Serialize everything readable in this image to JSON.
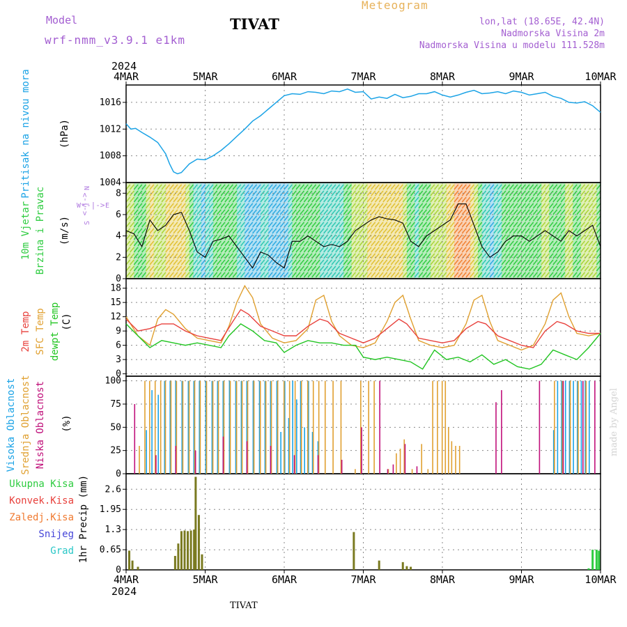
{
  "header": {
    "title": "TIVAT",
    "model_label": "Model",
    "model_name": "wrf-nmm_v3.9.1 e1km",
    "meteogram": "Meteogram",
    "lonlat": "lon,lat (18.65E, 42.4N)",
    "altitude": "Nadmorska Visina 2m",
    "model_altitude": "Nadmorska Visina u modelu 111.528m"
  },
  "footer": {
    "station": "TIVAT",
    "made_by": "made by Angel"
  },
  "time_axis": {
    "year": "2024",
    "ticks": [
      "4MAR",
      "5MAR",
      "6MAR",
      "7MAR",
      "8MAR",
      "9MAR",
      "10MAR"
    ]
  },
  "colors": {
    "pressure": "#1ba3e6",
    "wind_green": "#2ecc40",
    "temp2m": "#e8413c",
    "sfc": "#e0a030",
    "dewpt": "#22c522",
    "high_cloud": "#1ba3e6",
    "mid_cloud": "#e0a030",
    "low_cloud": "#c0107a",
    "total_precip": "#2ecc40",
    "conv_precip": "#e8413c",
    "frozen_precip": "#f07a30",
    "snow": "#4545d8",
    "hail": "#29c7c7",
    "precip_bar": "#7a7a20",
    "compass": "#b07be0"
  },
  "chart_data": [
    {
      "type": "line",
      "panel": "pressure",
      "ylabel": "Pritisak na nivou mora",
      "unit": "(hPa)",
      "yticks": [
        1004,
        1008,
        1012,
        1016
      ],
      "ylim": [
        1004,
        1018.6
      ],
      "grid": true,
      "series": [
        {
          "name": "Pritisak na nivou mora",
          "x": [
            0,
            0.06,
            0.12,
            0.2,
            0.3,
            0.4,
            0.5,
            0.55,
            0.6,
            0.65,
            0.7,
            0.8,
            0.9,
            1.0,
            1.1,
            1.2,
            1.3,
            1.4,
            1.5,
            1.6,
            1.7,
            1.8,
            1.9,
            2.0,
            2.1,
            2.2,
            2.3,
            2.4,
            2.5,
            2.6,
            2.7,
            2.8,
            2.9,
            3.0,
            3.1,
            3.2,
            3.3,
            3.4,
            3.5,
            3.6,
            3.7,
            3.8,
            3.9,
            4.0,
            4.1,
            4.2,
            4.3,
            4.4,
            4.5,
            4.6,
            4.7,
            4.8,
            4.9,
            5.0,
            5.1,
            5.2,
            5.3,
            5.4,
            5.5,
            5.6,
            5.7,
            5.8,
            5.9,
            6.0
          ],
          "values": [
            1012.8,
            1012.0,
            1012.1,
            1011.5,
            1010.8,
            1010.0,
            1008.3,
            1006.8,
            1005.6,
            1005.3,
            1005.5,
            1006.8,
            1007.5,
            1007.4,
            1008.0,
            1008.8,
            1009.8,
            1010.9,
            1012.0,
            1013.2,
            1014.0,
            1015.0,
            1016.0,
            1017.0,
            1017.3,
            1017.2,
            1017.6,
            1017.5,
            1017.3,
            1017.7,
            1017.6,
            1018.0,
            1017.5,
            1017.6,
            1016.5,
            1016.8,
            1016.6,
            1017.2,
            1016.7,
            1016.9,
            1017.3,
            1017.3,
            1017.6,
            1017.1,
            1016.8,
            1017.1,
            1017.5,
            1017.8,
            1017.3,
            1017.4,
            1017.6,
            1017.3,
            1017.7,
            1017.5,
            1017.1,
            1017.3,
            1017.5,
            1016.9,
            1016.6,
            1016.0,
            1015.9,
            1016.1,
            1015.5,
            1014.5
          ]
        }
      ]
    },
    {
      "type": "line",
      "panel": "wind",
      "ylabel": [
        "10m Vjetar",
        "Brzina i Pravac"
      ],
      "unit": "(m/s)",
      "compass": {
        "north": "N",
        "south": "S",
        "east": "E",
        "west": "W",
        "arrow": "<-|->"
      },
      "yticks": [
        0,
        2,
        4,
        6,
        8
      ],
      "ylim": [
        0,
        9
      ],
      "grid": true,
      "series": [
        {
          "name": "Brzina",
          "x": [
            0,
            0.1,
            0.2,
            0.3,
            0.4,
            0.5,
            0.6,
            0.7,
            0.8,
            0.9,
            1.0,
            1.1,
            1.2,
            1.3,
            1.4,
            1.5,
            1.6,
            1.7,
            1.8,
            1.9,
            2.0,
            2.1,
            2.2,
            2.3,
            2.4,
            2.5,
            2.6,
            2.7,
            2.8,
            2.9,
            3.0,
            3.1,
            3.2,
            3.3,
            3.4,
            3.5,
            3.6,
            3.7,
            3.8,
            3.9,
            4.0,
            4.1,
            4.2,
            4.3,
            4.4,
            4.5,
            4.6,
            4.7,
            4.8,
            4.9,
            5.0,
            5.1,
            5.2,
            5.3,
            5.4,
            5.5,
            5.6,
            5.7,
            5.8,
            5.9,
            6.0
          ],
          "values": [
            4.5,
            4.2,
            3.0,
            5.5,
            4.5,
            5.0,
            6.0,
            6.2,
            4.5,
            2.5,
            2.0,
            3.5,
            3.7,
            4.0,
            3.0,
            2.0,
            1.0,
            2.5,
            2.2,
            1.5,
            1.0,
            3.5,
            3.5,
            4.0,
            3.5,
            3.0,
            3.2,
            3.0,
            3.5,
            4.5,
            5.0,
            5.5,
            5.8,
            5.6,
            5.5,
            5.2,
            3.5,
            3.0,
            4.0,
            4.5,
            5.0,
            5.5,
            7.0,
            7.0,
            5.0,
            3.0,
            2.0,
            2.5,
            3.5,
            4.0,
            4.0,
            3.5,
            4.0,
            4.5,
            4.0,
            3.5,
            4.5,
            4.0,
            4.5,
            5.0,
            3.0
          ]
        }
      ]
    },
    {
      "type": "line",
      "panel": "temperature",
      "ylabel": [
        "2m Temp",
        "SFC Temp",
        "dewpt Temp"
      ],
      "unit": "(C)",
      "yticks": [
        0,
        3,
        6,
        9,
        12,
        15,
        18
      ],
      "ylim": [
        -0.5,
        20
      ],
      "grid": true,
      "series": [
        {
          "name": "2m Temp",
          "x": [
            0,
            0.15,
            0.3,
            0.45,
            0.6,
            0.75,
            0.9,
            1.05,
            1.2,
            1.35,
            1.45,
            1.55,
            1.7,
            1.85,
            2.0,
            2.15,
            2.3,
            2.45,
            2.55,
            2.7,
            2.85,
            3.0,
            3.15,
            3.3,
            3.45,
            3.55,
            3.7,
            3.85,
            4.0,
            4.15,
            4.3,
            4.45,
            4.55,
            4.7,
            4.85,
            5.0,
            5.15,
            5.3,
            5.45,
            5.55,
            5.7,
            5.85,
            6.0
          ],
          "values": [
            11.5,
            9.0,
            9.5,
            10.5,
            10.5,
            9.0,
            8.0,
            7.5,
            7.0,
            11.0,
            13.5,
            12.5,
            10.0,
            9.0,
            8.0,
            8.0,
            10.0,
            11.5,
            11.0,
            8.5,
            7.5,
            6.5,
            7.5,
            9.5,
            11.5,
            10.5,
            7.5,
            7.0,
            6.5,
            7.0,
            9.5,
            11.0,
            10.5,
            8.0,
            7.0,
            6.0,
            5.5,
            9.0,
            11.0,
            10.5,
            9.0,
            8.5,
            8.5
          ]
        },
        {
          "name": "SFC Temp",
          "x": [
            0,
            0.15,
            0.3,
            0.4,
            0.5,
            0.6,
            0.75,
            0.9,
            1.05,
            1.2,
            1.3,
            1.4,
            1.5,
            1.6,
            1.7,
            1.85,
            2.0,
            2.15,
            2.3,
            2.4,
            2.5,
            2.6,
            2.7,
            2.85,
            3.0,
            3.15,
            3.3,
            3.4,
            3.5,
            3.6,
            3.7,
            3.85,
            4.0,
            4.15,
            4.3,
            4.4,
            4.5,
            4.6,
            4.7,
            4.85,
            5.0,
            5.15,
            5.3,
            5.4,
            5.5,
            5.6,
            5.7,
            5.85,
            6.0
          ],
          "values": [
            12.0,
            8.0,
            6.0,
            11.5,
            13.5,
            12.5,
            9.5,
            7.5,
            7.0,
            6.5,
            10.0,
            15.0,
            18.5,
            16.0,
            10.5,
            7.5,
            6.5,
            7.0,
            9.5,
            15.5,
            16.5,
            11.0,
            8.0,
            6.0,
            5.5,
            6.5,
            11.0,
            15.0,
            16.5,
            11.5,
            7.0,
            6.0,
            5.5,
            6.0,
            10.5,
            15.5,
            16.5,
            11.0,
            7.0,
            6.0,
            5.0,
            6.0,
            10.5,
            15.5,
            17.0,
            12.0,
            8.5,
            8.0,
            8.5
          ]
        },
        {
          "name": "dewpt Temp",
          "x": [
            0,
            0.15,
            0.3,
            0.45,
            0.6,
            0.75,
            0.9,
            1.05,
            1.2,
            1.3,
            1.45,
            1.6,
            1.75,
            1.9,
            2.0,
            2.15,
            2.3,
            2.45,
            2.6,
            2.75,
            2.9,
            3.0,
            3.15,
            3.3,
            3.45,
            3.6,
            3.75,
            3.9,
            4.05,
            4.2,
            4.35,
            4.5,
            4.65,
            4.8,
            4.95,
            5.1,
            5.25,
            5.4,
            5.55,
            5.7,
            5.85,
            6.0
          ],
          "values": [
            10.5,
            8.0,
            5.5,
            7.0,
            6.5,
            6.0,
            6.5,
            6.0,
            5.5,
            8.0,
            10.5,
            9.0,
            7.0,
            6.5,
            4.5,
            6.0,
            7.0,
            6.5,
            6.5,
            6.0,
            6.0,
            3.5,
            3.0,
            3.5,
            3.0,
            2.5,
            1.0,
            5.0,
            3.0,
            3.5,
            2.5,
            4.0,
            2.0,
            3.0,
            1.5,
            1.0,
            2.0,
            5.0,
            4.0,
            3.0,
            5.5,
            8.5
          ]
        }
      ]
    },
    {
      "type": "bar",
      "panel": "clouds",
      "ylabel": [
        "Visoka Oblacnost",
        "Srednja Oblacnost",
        "Niska Oblacnost"
      ],
      "unit": "(%)",
      "yticks": [
        0,
        25,
        50,
        75,
        100
      ],
      "ylim": [
        0,
        105
      ],
      "grid": true,
      "series": [
        {
          "name": "Visoka Oblacnost",
          "x": [
            0.18,
            0.25,
            0.32,
            0.4,
            0.48,
            0.55,
            0.62,
            0.7,
            0.78,
            0.85,
            0.92,
            1.0,
            1.08,
            1.15,
            1.22,
            1.3,
            1.38,
            1.45,
            1.52,
            1.6,
            1.68,
            1.75,
            1.82,
            1.9,
            1.95,
            2.0,
            2.05,
            2.1,
            2.15,
            2.2,
            2.25,
            2.3,
            2.35,
            2.42,
            2.5,
            5.4,
            5.45,
            5.5,
            5.55,
            5.6,
            5.65,
            5.7,
            5.75,
            5.8,
            5.85
          ],
          "values": [
            0,
            47,
            90,
            85,
            100,
            100,
            100,
            100,
            100,
            100,
            100,
            100,
            100,
            100,
            100,
            100,
            100,
            100,
            100,
            100,
            100,
            100,
            100,
            100,
            45,
            100,
            60,
            100,
            80,
            100,
            50,
            100,
            45,
            35,
            0,
            47,
            100,
            100,
            100,
            100,
            100,
            100,
            100,
            100,
            100
          ]
        },
        {
          "name": "Srednja Oblacnost",
          "x": [
            0.15,
            0.22,
            0.28,
            0.35,
            0.42,
            0.48,
            0.55,
            0.62,
            0.7,
            0.78,
            0.85,
            0.92,
            1.0,
            1.08,
            1.15,
            1.22,
            1.3,
            1.38,
            1.45,
            1.52,
            1.6,
            1.68,
            1.75,
            1.82,
            1.9,
            1.98,
            2.05,
            2.12,
            2.2,
            2.28,
            2.35,
            2.42,
            2.5,
            2.6,
            2.7,
            2.88,
            2.95,
            3.05,
            3.12,
            3.3,
            3.4,
            3.45,
            3.5,
            3.6,
            3.72,
            3.8,
            3.86,
            3.92,
            3.98,
            4.02,
            4.06,
            4.1,
            4.15,
            4.2,
            5.4,
            5.5,
            5.6,
            5.7,
            5.8
          ],
          "values": [
            30,
            100,
            100,
            100,
            100,
            100,
            100,
            100,
            100,
            100,
            100,
            100,
            100,
            100,
            100,
            100,
            100,
            100,
            100,
            100,
            100,
            100,
            100,
            100,
            100,
            100,
            100,
            100,
            100,
            100,
            100,
            100,
            100,
            100,
            100,
            5,
            100,
            100,
            100,
            5,
            22,
            27,
            37,
            5,
            32,
            5,
            100,
            100,
            100,
            100,
            50,
            35,
            30,
            30,
            100,
            100,
            100,
            100,
            100
          ]
        },
        {
          "name": "Niska Oblacnost",
          "x": [
            0.08,
            0.35,
            0.6,
            0.85,
            1.2,
            1.5,
            1.8,
            2.1,
            2.4,
            2.7,
            2.95,
            3.18,
            3.28,
            3.35,
            3.5,
            3.65,
            4.65,
            4.72,
            5.2,
            5.5,
            5.75,
            5.9
          ],
          "values": [
            75,
            20,
            30,
            25,
            40,
            35,
            30,
            20,
            20,
            15,
            50,
            100,
            5,
            10,
            32,
            8,
            77,
            90,
            100,
            100,
            100,
            100
          ]
        }
      ]
    },
    {
      "type": "bar",
      "panel": "precip",
      "ylabel": "1hr Precip",
      "unit": "(mm)",
      "legend": [
        "Ukupna Kisa",
        "Konvek.Kisa",
        "Zaledj.Kisa",
        "Snijeg",
        "Grad"
      ],
      "yticks": [
        0,
        0.65,
        1.3,
        1.95,
        2.6
      ],
      "ylim": [
        0,
        3.1
      ],
      "grid": true,
      "series": [
        {
          "name": "Ukupna Kisa",
          "x": [
            0.04,
            0.08,
            0.15,
            0.62,
            0.66,
            0.7,
            0.74,
            0.78,
            0.82,
            0.86,
            0.88,
            0.92,
            0.96,
            2.88,
            3.2,
            3.5,
            3.55,
            3.6,
            5.85,
            5.9,
            5.95,
            5.98
          ],
          "values": [
            0.62,
            0.3,
            0.1,
            0.45,
            0.85,
            1.25,
            1.27,
            1.25,
            1.27,
            1.3,
            3.0,
            1.77,
            0.5,
            1.22,
            0.3,
            0.25,
            0.12,
            0.1,
            0.05,
            0.65,
            0.65,
            0.62
          ]
        }
      ]
    }
  ]
}
